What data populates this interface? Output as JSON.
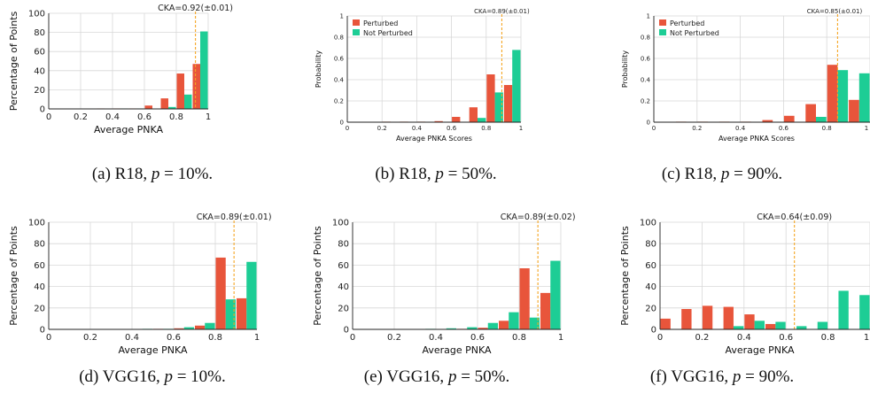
{
  "colors": {
    "perturbed": "#e8553b",
    "not_perturbed": "#1dcd95",
    "cka_line": "#f5a623",
    "grid": "#d8d8d8"
  },
  "chart_data": [
    {
      "id": "a",
      "type": "bar",
      "cka_label": "CKA=0.92(±0.01)",
      "cka_value": 0.92,
      "xlabel": "Average PNKA",
      "ylabel": "Percentage of Points",
      "xlim": [
        0,
        1
      ],
      "ylim": [
        0,
        100
      ],
      "xticks": [
        "0",
        "0.2",
        "0.4",
        "0.6",
        "0.8",
        "1"
      ],
      "yticks": [
        "0",
        "20",
        "40",
        "60",
        "80",
        "100"
      ],
      "legend": [],
      "bins": [
        0.05,
        0.15,
        0.25,
        0.35,
        0.45,
        0.55,
        0.65,
        0.75,
        0.85,
        0.95
      ],
      "series": [
        {
          "key": "perturbed",
          "values": [
            0,
            0,
            0,
            0.5,
            0.5,
            0.5,
            3.5,
            11,
            37,
            47
          ]
        },
        {
          "key": "not_perturbed",
          "values": [
            0,
            0,
            0,
            0,
            0.5,
            0.5,
            0,
            2,
            15,
            81
          ]
        }
      ]
    },
    {
      "id": "b",
      "type": "bar",
      "cka_label": "CKA=0.89(±0.01)",
      "cka_value": 0.89,
      "xlabel": "Average PNKA Scores",
      "ylabel": "Probability",
      "xlim": [
        0,
        1
      ],
      "ylim": [
        0,
        1
      ],
      "xticks": [
        "0",
        "0.2",
        "0.4",
        "0.6",
        "0.8",
        "1"
      ],
      "yticks": [
        "0",
        "0.2",
        "0.4",
        "0.6",
        "0.8",
        "1"
      ],
      "legend": [
        "Perturbed",
        "Not Perturbed"
      ],
      "bins": [
        0.05,
        0.15,
        0.25,
        0.35,
        0.45,
        0.55,
        0.65,
        0.75,
        0.85,
        0.95
      ],
      "series": [
        {
          "key": "perturbed",
          "values": [
            0,
            0,
            0.005,
            0.005,
            0.005,
            0.01,
            0.05,
            0.14,
            0.45,
            0.35
          ]
        },
        {
          "key": "not_perturbed",
          "values": [
            0,
            0,
            0,
            0,
            0,
            0,
            0,
            0.04,
            0.28,
            0.68
          ]
        }
      ]
    },
    {
      "id": "c",
      "type": "bar",
      "cka_label": "CKA=0.85(±0.01)",
      "cka_value": 0.85,
      "xlabel": "Average PNKA Scores",
      "ylabel": "Probability",
      "xlim": [
        0,
        1
      ],
      "ylim": [
        0,
        1
      ],
      "xticks": [
        "0",
        "0.2",
        "0.4",
        "0.6",
        "0.8",
        "1"
      ],
      "yticks": [
        "0",
        "0.2",
        "0.4",
        "0.6",
        "0.8",
        "1"
      ],
      "legend": [
        "Perturbed",
        "Not Perturbed"
      ],
      "bins": [
        0.05,
        0.15,
        0.25,
        0.35,
        0.45,
        0.55,
        0.65,
        0.75,
        0.85,
        0.95
      ],
      "series": [
        {
          "key": "perturbed",
          "values": [
            0,
            0.005,
            0.005,
            0.005,
            0.005,
            0.02,
            0.06,
            0.17,
            0.54,
            0.21
          ]
        },
        {
          "key": "not_perturbed",
          "values": [
            0,
            0,
            0,
            0,
            0,
            0,
            0,
            0.05,
            0.49,
            0.46
          ]
        }
      ]
    },
    {
      "id": "d",
      "type": "bar",
      "cka_label": "CKA=0.89(±0.01)",
      "cka_value": 0.89,
      "xlabel": "Average PNKA",
      "ylabel": "Percentage of Points",
      "xlim": [
        0,
        1
      ],
      "ylim": [
        0,
        100
      ],
      "xticks": [
        "0",
        "0.2",
        "0.4",
        "0.6",
        "0.8",
        "1"
      ],
      "yticks": [
        "0",
        "20",
        "40",
        "60",
        "80",
        "100"
      ],
      "legend": [],
      "bins": [
        0.05,
        0.15,
        0.25,
        0.35,
        0.45,
        0.55,
        0.65,
        0.75,
        0.85,
        0.95
      ],
      "series": [
        {
          "key": "perturbed",
          "values": [
            0,
            0,
            0,
            0,
            0,
            0.5,
            1,
            3.5,
            67,
            29
          ]
        },
        {
          "key": "not_perturbed",
          "values": [
            0,
            0,
            0,
            0,
            0.5,
            0.5,
            2,
            6,
            28,
            63
          ]
        }
      ]
    },
    {
      "id": "e",
      "type": "bar",
      "cka_label": "CKA=0.89(±0.02)",
      "cka_value": 0.89,
      "xlabel": "Average PNKA",
      "ylabel": "Percentage of Points",
      "xlim": [
        0,
        1
      ],
      "ylim": [
        0,
        100
      ],
      "xticks": [
        "0",
        "0.2",
        "0.4",
        "0.6",
        "0.8",
        "1"
      ],
      "yticks": [
        "0",
        "20",
        "40",
        "60",
        "80",
        "100"
      ],
      "legend": [],
      "bins": [
        0.05,
        0.15,
        0.25,
        0.35,
        0.45,
        0.55,
        0.65,
        0.75,
        0.85,
        0.95
      ],
      "series": [
        {
          "key": "perturbed",
          "values": [
            0,
            0,
            0,
            0,
            0,
            0.5,
            1.5,
            8,
            57,
            34
          ]
        },
        {
          "key": "not_perturbed",
          "values": [
            0,
            0,
            0,
            0.5,
            1,
            2,
            6,
            16,
            11,
            64
          ]
        }
      ]
    },
    {
      "id": "f",
      "type": "bar",
      "cka_label": "CKA=0.64(±0.09)",
      "cka_value": 0.64,
      "xlabel": "Average PNKA",
      "ylabel": "Percentage of Points",
      "xlim": [
        0,
        1
      ],
      "ylim": [
        0,
        100
      ],
      "xticks": [
        "0",
        "0.2",
        "0.4",
        "0.6",
        "0.8",
        "1"
      ],
      "yticks": [
        "0",
        "20",
        "40",
        "60",
        "80",
        "100"
      ],
      "legend": [],
      "bins": [
        0.05,
        0.15,
        0.25,
        0.35,
        0.45,
        0.55,
        0.65,
        0.75,
        0.85,
        0.95
      ],
      "series": [
        {
          "key": "perturbed",
          "values": [
            10,
            19,
            22,
            21,
            14,
            5,
            0,
            0,
            0,
            0
          ]
        },
        {
          "key": "not_perturbed",
          "values": [
            0,
            0,
            0,
            3,
            8,
            7,
            3,
            7,
            36,
            32
          ]
        }
      ]
    }
  ],
  "captions": [
    {
      "prefix": "(a) R18, ",
      "var": "p",
      "suffix": " = 10%."
    },
    {
      "prefix": "(b) R18, ",
      "var": "p",
      "suffix": " = 50%."
    },
    {
      "prefix": "(c) R18, ",
      "var": "p",
      "suffix": " = 90%."
    },
    {
      "prefix": "(d) VGG16, ",
      "var": "p",
      "suffix": " = 10%."
    },
    {
      "prefix": "(e) VGG16, ",
      "var": "p",
      "suffix": " = 50%."
    },
    {
      "prefix": "(f) VGG16, ",
      "var": "p",
      "suffix": " = 90%."
    }
  ]
}
